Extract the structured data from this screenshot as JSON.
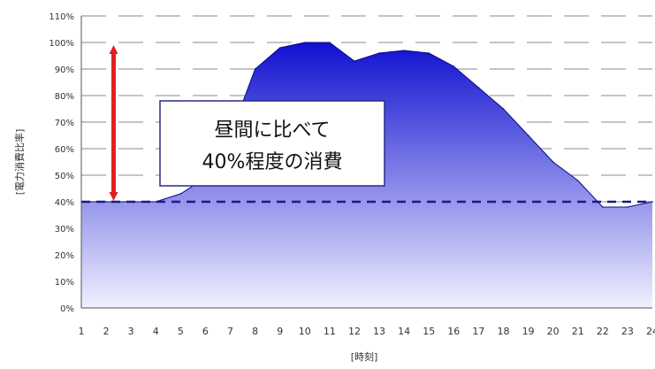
{
  "chart_data": {
    "type": "area",
    "xlabel": "[時刻]",
    "ylabel": "[電力消費比率]",
    "x": [
      1,
      2,
      3,
      4,
      5,
      6,
      7,
      8,
      9,
      10,
      11,
      12,
      13,
      14,
      15,
      16,
      17,
      18,
      19,
      20,
      21,
      22,
      23,
      24
    ],
    "values": [
      40,
      40,
      40,
      40,
      43,
      49,
      65,
      90,
      98,
      100,
      100,
      93,
      96,
      97,
      96,
      91,
      83,
      75,
      65,
      55,
      48,
      38,
      38,
      40
    ],
    "xlim": [
      1,
      24
    ],
    "ylim": [
      0,
      110
    ],
    "yticks": [
      "0%",
      "10%",
      "20%",
      "30%",
      "40%",
      "50%",
      "60%",
      "70%",
      "80%",
      "90%",
      "100%",
      "110%"
    ],
    "xticks": [
      "1",
      "2",
      "3",
      "4",
      "5",
      "6",
      "7",
      "8",
      "9",
      "10",
      "11",
      "12",
      "13",
      "14",
      "15",
      "16",
      "17",
      "18",
      "19",
      "20",
      "21",
      "22",
      "23",
      "24"
    ],
    "reference_line": {
      "y": 40,
      "style": "dashed",
      "color": "#1a1a8c"
    },
    "annotation": {
      "lines": [
        "昼間に比べて",
        "40%程度の消費"
      ]
    },
    "arrow": {
      "from": 40,
      "to": 100,
      "x": 2.3,
      "color": "#e02020"
    },
    "grid": true,
    "colors": {
      "fill_top": "#1010d0",
      "fill_bottom": "#f0f0ff",
      "axis": "#555555",
      "grid": "#888888"
    }
  }
}
